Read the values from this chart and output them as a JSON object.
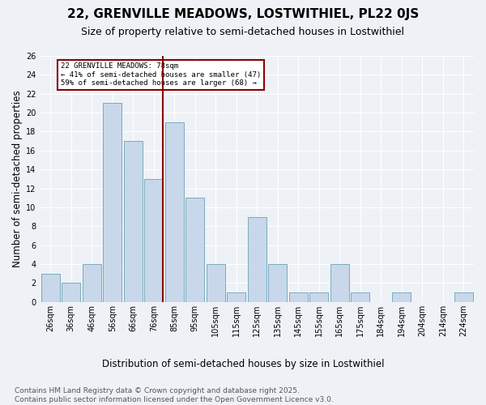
{
  "title": "22, GRENVILLE MEADOWS, LOSTWITHIEL, PL22 0JS",
  "subtitle": "Size of property relative to semi-detached houses in Lostwithiel",
  "xlabel": "Distribution of semi-detached houses by size in Lostwithiel",
  "ylabel": "Number of semi-detached properties",
  "bin_labels": [
    "26sqm",
    "36sqm",
    "46sqm",
    "56sqm",
    "66sqm",
    "76sqm",
    "85sqm",
    "95sqm",
    "105sqm",
    "115sqm",
    "125sqm",
    "135sqm",
    "145sqm",
    "155sqm",
    "165sqm",
    "175sqm",
    "184sqm",
    "194sqm",
    "204sqm",
    "214sqm",
    "224sqm"
  ],
  "values": [
    3,
    2,
    4,
    21,
    17,
    13,
    19,
    11,
    4,
    1,
    9,
    4,
    1,
    1,
    4,
    1,
    0,
    1,
    0,
    0,
    1
  ],
  "bar_color": "#c8d8ea",
  "bar_edge_color": "#7aaabf",
  "highlight_bar_index": 5,
  "highlight_line_color": "#8B0000",
  "annotation_title": "22 GRENVILLE MEADOWS: 78sqm",
  "annotation_line1": "← 41% of semi-detached houses are smaller (47)",
  "annotation_line2": "59% of semi-detached houses are larger (68) →",
  "annotation_box_color": "#8B0000",
  "ylim": [
    0,
    26
  ],
  "yticks": [
    0,
    2,
    4,
    6,
    8,
    10,
    12,
    14,
    16,
    18,
    20,
    22,
    24,
    26
  ],
  "footnote": "Contains HM Land Registry data © Crown copyright and database right 2025.\nContains public sector information licensed under the Open Government Licence v3.0.",
  "bg_color": "#eef2f7",
  "plot_bg_color": "#eef2f7",
  "title_fontsize": 11,
  "subtitle_fontsize": 9,
  "axis_label_fontsize": 8.5,
  "tick_fontsize": 7,
  "footnote_fontsize": 6.5
}
